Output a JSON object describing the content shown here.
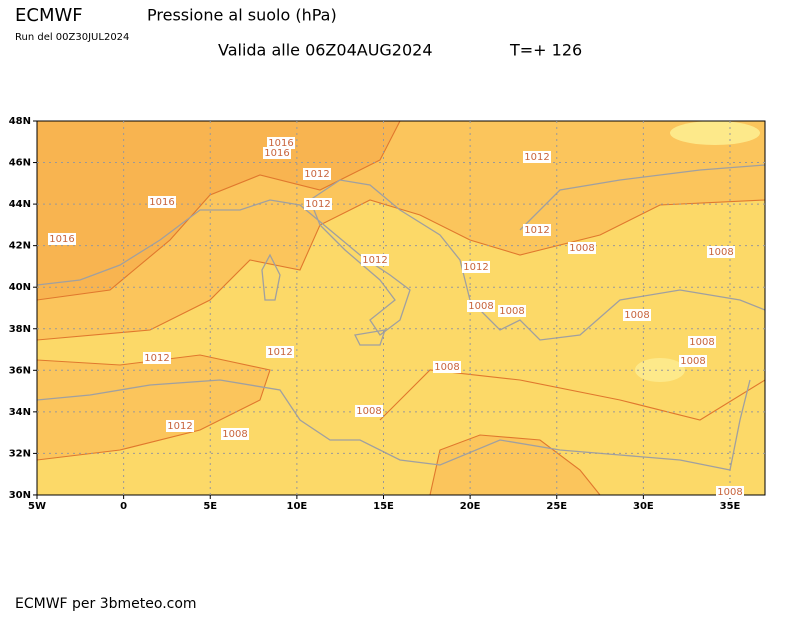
{
  "header": {
    "model": "ECMWF",
    "title": "Pressione al suolo (hPa)",
    "run": "Run del 00Z30JUL2024",
    "valid": "Valida alle 06Z04AUG2024",
    "step": "T=+ 126"
  },
  "map": {
    "lat_labels": [
      "48N",
      "46N",
      "44N",
      "42N",
      "40N",
      "38N",
      "36N",
      "34N",
      "32N",
      "30N"
    ],
    "lon_labels": [
      "5W",
      "0",
      "5E",
      "10E",
      "15E",
      "20E",
      "25E",
      "30E",
      "35E"
    ],
    "contour_labels": [
      "1016",
      "1016",
      "1012",
      "1012",
      "1016",
      "1012",
      "1016",
      "1012",
      "1008",
      "1008",
      "1012",
      "1012",
      "1008",
      "1008",
      "1008",
      "1008",
      "1008",
      "1012",
      "1012",
      "1008",
      "1008",
      "1012",
      "1008",
      "1008"
    ]
  },
  "footer": {
    "credit": "ECMWF per 3bmeteo.com"
  }
}
